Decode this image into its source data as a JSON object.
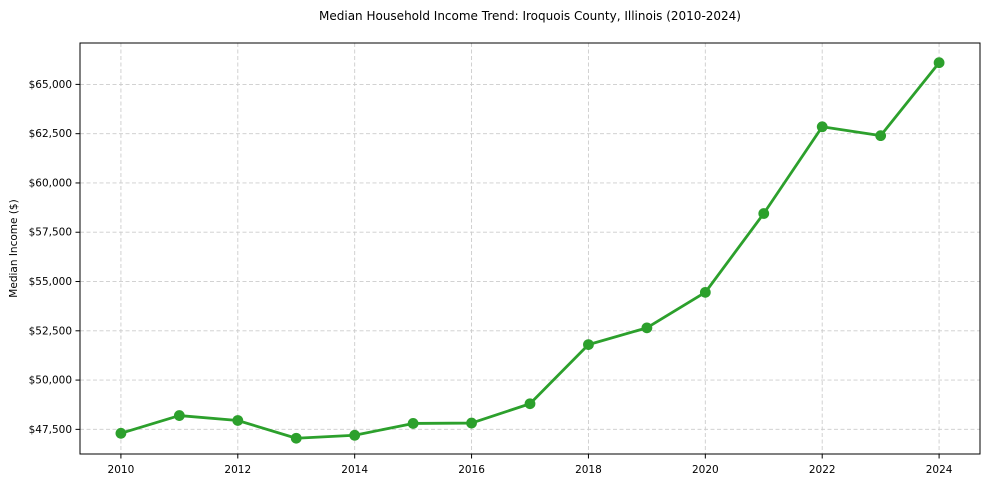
{
  "chart_data": {
    "type": "line",
    "title": "Median Household Income Trend: Iroquois County, Illinois (2010-2024)",
    "xlabel": "",
    "ylabel": "Median Income ($)",
    "x": [
      2010,
      2011,
      2012,
      2013,
      2014,
      2015,
      2016,
      2017,
      2018,
      2019,
      2020,
      2021,
      2022,
      2023,
      2024
    ],
    "series": [
      {
        "name": "Median Household Income",
        "values": [
          47300,
          48200,
          47950,
          47050,
          47200,
          47800,
          47820,
          48800,
          51800,
          52650,
          54450,
          58450,
          62850,
          62400,
          66100
        ]
      }
    ],
    "xticks": {
      "values": [
        2010,
        2012,
        2014,
        2016,
        2018,
        2020,
        2022,
        2024
      ],
      "labels": [
        "2010",
        "2012",
        "2014",
        "2016",
        "2018",
        "2020",
        "2022",
        "2024"
      ]
    },
    "yticks": {
      "values": [
        47500,
        50000,
        52500,
        55000,
        57500,
        60000,
        62500,
        65000
      ],
      "labels": [
        "$47,500",
        "$50,000",
        "$52,500",
        "$55,000",
        "$57,500",
        "$60,000",
        "$62,500",
        "$65,000"
      ]
    },
    "xlim": [
      2009.3,
      2024.7
    ],
    "ylim": [
      46250,
      67100
    ],
    "grid": true,
    "legend": "none",
    "colors": {
      "line": "#2ca02c",
      "marker": "#2ca02c",
      "grid": "#cccccc",
      "spine": "#000000",
      "text": "#000000",
      "background": "#ffffff"
    }
  }
}
